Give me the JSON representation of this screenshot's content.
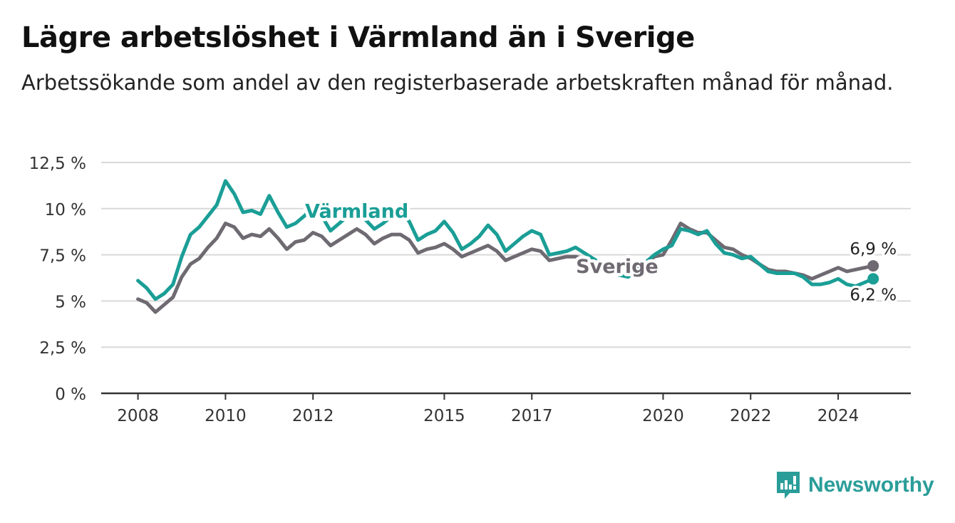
{
  "title": "Lägre arbetslöshet i Värmland än i Sverige",
  "subtitle": "Arbetssökande som andel av den registerbaserade arbetskraften månad för månad.",
  "brand": {
    "name": "Newsworthy",
    "icon": "newsworthy-chart-bubble-icon",
    "color": "#2a9d99"
  },
  "colors": {
    "varmland": "#1a9e96",
    "sverige": "#6f6a72",
    "grid": "#d9d9d9",
    "axis": "#333333"
  },
  "chart_data": {
    "type": "line",
    "xlabel": "",
    "ylabel": "",
    "xlim": [
      2007.0,
      2025.75
    ],
    "ylim": [
      0,
      12.5
    ],
    "grid": true,
    "y_ticks": [
      0,
      2.5,
      5,
      7.5,
      10,
      12.5
    ],
    "y_tick_labels": [
      "0 %",
      "2,5 %",
      "5 %",
      "7,5 %",
      "10 %",
      "12,5 %"
    ],
    "x_ticks": [
      2008,
      2010,
      2012,
      2015,
      2017,
      2020,
      2022,
      2024
    ],
    "x_tick_labels": [
      "2008",
      "2010",
      "2012",
      "2015",
      "2017",
      "2020",
      "2022",
      "2024"
    ],
    "series": [
      {
        "name": "Värmland",
        "end_label": "6,2 %",
        "x": [
          2008.0,
          2008.2,
          2008.4,
          2008.6,
          2008.8,
          2009.0,
          2009.2,
          2009.4,
          2009.6,
          2009.8,
          2010.0,
          2010.2,
          2010.4,
          2010.6,
          2010.8,
          2011.0,
          2011.2,
          2011.4,
          2011.6,
          2011.8,
          2012.0,
          2012.2,
          2012.4,
          2012.6,
          2012.8,
          2013.0,
          2013.2,
          2013.4,
          2013.6,
          2013.8,
          2014.0,
          2014.2,
          2014.4,
          2014.6,
          2014.8,
          2015.0,
          2015.2,
          2015.4,
          2015.6,
          2015.8,
          2016.0,
          2016.2,
          2016.4,
          2016.6,
          2016.8,
          2017.0,
          2017.2,
          2017.4,
          2017.6,
          2017.8,
          2018.0,
          2018.2,
          2018.4,
          2018.6,
          2018.8,
          2019.0,
          2019.2,
          2019.4,
          2019.6,
          2019.8,
          2020.0,
          2020.2,
          2020.4,
          2020.6,
          2020.8,
          2021.0,
          2021.2,
          2021.4,
          2021.6,
          2021.8,
          2022.0,
          2022.2,
          2022.4,
          2022.6,
          2022.8,
          2023.0,
          2023.2,
          2023.4,
          2023.6,
          2023.8,
          2024.0,
          2024.2,
          2024.4,
          2024.6,
          2024.8
        ],
        "y": [
          6.1,
          5.7,
          5.1,
          5.4,
          5.9,
          7.4,
          8.6,
          9.0,
          9.6,
          10.2,
          11.5,
          10.8,
          9.8,
          9.9,
          9.7,
          10.7,
          9.8,
          9.0,
          9.2,
          9.6,
          10.1,
          9.6,
          8.8,
          9.2,
          9.6,
          10.0,
          9.4,
          8.9,
          9.2,
          9.6,
          9.9,
          9.3,
          8.3,
          8.6,
          8.8,
          9.3,
          8.7,
          7.8,
          8.1,
          8.5,
          9.1,
          8.6,
          7.7,
          8.1,
          8.5,
          8.8,
          8.6,
          7.5,
          7.6,
          7.7,
          7.9,
          7.6,
          7.3,
          7.0,
          6.8,
          6.4,
          6.3,
          6.6,
          7.1,
          7.5,
          7.8,
          8.0,
          8.9,
          8.8,
          8.6,
          8.8,
          8.1,
          7.6,
          7.5,
          7.3,
          7.4,
          7.0,
          6.6,
          6.5,
          6.5,
          6.5,
          6.3,
          5.9,
          5.9,
          6.0,
          6.2,
          5.9,
          5.8,
          6.0,
          6.2
        ]
      },
      {
        "name": "Sverige",
        "end_label": "6,9 %",
        "x": [
          2008.0,
          2008.2,
          2008.4,
          2008.6,
          2008.8,
          2009.0,
          2009.2,
          2009.4,
          2009.6,
          2009.8,
          2010.0,
          2010.2,
          2010.4,
          2010.6,
          2010.8,
          2011.0,
          2011.2,
          2011.4,
          2011.6,
          2011.8,
          2012.0,
          2012.2,
          2012.4,
          2012.6,
          2012.8,
          2013.0,
          2013.2,
          2013.4,
          2013.6,
          2013.8,
          2014.0,
          2014.2,
          2014.4,
          2014.6,
          2014.8,
          2015.0,
          2015.2,
          2015.4,
          2015.6,
          2015.8,
          2016.0,
          2016.2,
          2016.4,
          2016.6,
          2016.8,
          2017.0,
          2017.2,
          2017.4,
          2017.6,
          2017.8,
          2018.0,
          2018.2,
          2018.4,
          2018.6,
          2018.8,
          2019.0,
          2019.2,
          2019.4,
          2019.6,
          2019.8,
          2020.0,
          2020.2,
          2020.4,
          2020.6,
          2020.8,
          2021.0,
          2021.2,
          2021.4,
          2021.6,
          2021.8,
          2022.0,
          2022.2,
          2022.4,
          2022.6,
          2022.8,
          2023.0,
          2023.2,
          2023.4,
          2023.6,
          2023.8,
          2024.0,
          2024.2,
          2024.4,
          2024.6,
          2024.8
        ],
        "y": [
          5.1,
          4.9,
          4.4,
          4.8,
          5.2,
          6.3,
          7.0,
          7.3,
          7.9,
          8.4,
          9.2,
          9.0,
          8.4,
          8.6,
          8.5,
          8.9,
          8.4,
          7.8,
          8.2,
          8.3,
          8.7,
          8.5,
          8.0,
          8.3,
          8.6,
          8.9,
          8.6,
          8.1,
          8.4,
          8.6,
          8.6,
          8.3,
          7.6,
          7.8,
          7.9,
          8.1,
          7.8,
          7.4,
          7.6,
          7.8,
          8.0,
          7.7,
          7.2,
          7.4,
          7.6,
          7.8,
          7.7,
          7.2,
          7.3,
          7.4,
          7.4,
          7.3,
          6.9,
          6.9,
          6.8,
          6.5,
          6.5,
          6.7,
          7.0,
          7.4,
          7.5,
          8.3,
          9.2,
          8.9,
          8.7,
          8.7,
          8.3,
          7.9,
          7.8,
          7.5,
          7.3,
          7.0,
          6.7,
          6.6,
          6.6,
          6.5,
          6.4,
          6.2,
          6.4,
          6.6,
          6.8,
          6.6,
          6.7,
          6.8,
          6.9
        ]
      }
    ]
  }
}
